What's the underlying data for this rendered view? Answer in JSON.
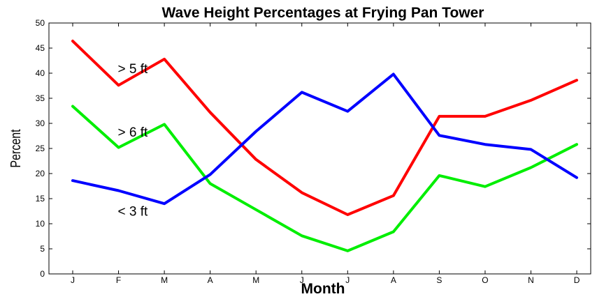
{
  "chart_data": {
    "type": "line",
    "title": "Wave Height Percentages at Frying Pan Tower",
    "xlabel": "Month",
    "ylabel": "Percent",
    "categories": [
      "J",
      "F",
      "M",
      "A",
      "M",
      "J",
      "J",
      "A",
      "S",
      "O",
      "N",
      "D"
    ],
    "ylim": [
      0,
      50
    ],
    "yticks": [
      0,
      5,
      10,
      15,
      20,
      25,
      30,
      35,
      40,
      45,
      50
    ],
    "grid": false,
    "series": [
      {
        "color": "#ff0000",
        "values": [
          46.4,
          37.6,
          42.8,
          32.2,
          22.8,
          16.2,
          11.8,
          15.6,
          31.4,
          31.4,
          34.6,
          38.6
        ]
      },
      {
        "color": "#00ee00",
        "values": [
          33.4,
          25.2,
          29.8,
          18.0,
          12.8,
          7.6,
          4.6,
          8.4,
          19.6,
          17.4,
          21.2,
          25.8
        ]
      },
      {
        "color": "#0000ff",
        "values": [
          18.6,
          16.6,
          14.0,
          19.8,
          28.4,
          36.2,
          32.4,
          39.8,
          27.6,
          25.8,
          24.8,
          19.2
        ]
      }
    ],
    "annotations": [
      {
        "text": "> 5 ft",
        "x": 1,
        "y": 41
      },
      {
        "text": "> 6 ft",
        "x": 1,
        "y": 28.3
      },
      {
        "text": "< 3 ft",
        "x": 1,
        "y": 12.6
      }
    ]
  }
}
